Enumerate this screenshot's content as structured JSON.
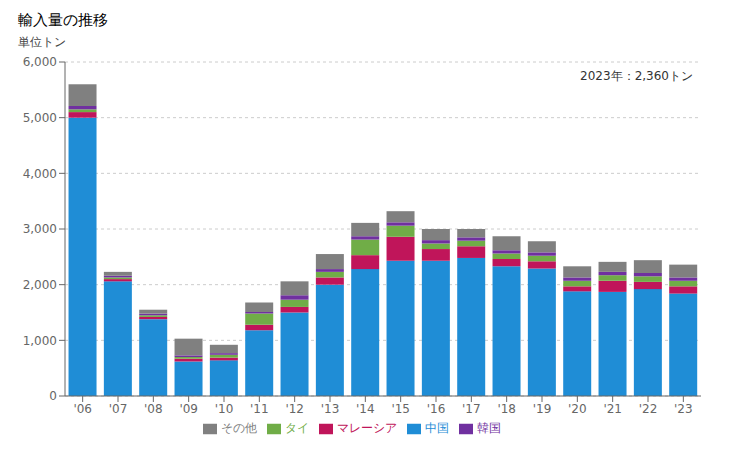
{
  "chart_data": {
    "type": "bar",
    "stacked": true,
    "title": "輸入量の推移",
    "ylabel": "単位トン",
    "annotation": "2023年：2,360トン",
    "categories": [
      "'06",
      "'07",
      "'08",
      "'09",
      "'10",
      "'11",
      "'12",
      "'13",
      "'14",
      "'15",
      "'16",
      "'17",
      "'18",
      "'19",
      "'20",
      "'21",
      "'22",
      "'23"
    ],
    "series": [
      {
        "name": "中国",
        "color": "#1f8dd6",
        "values": [
          5000,
          2060,
          1380,
          620,
          640,
          1180,
          1500,
          2000,
          2280,
          2430,
          2430,
          2480,
          2330,
          2290,
          1880,
          1870,
          1920,
          1840
        ]
      },
      {
        "name": "マレーシア",
        "color": "#c0155a",
        "values": [
          100,
          40,
          40,
          50,
          50,
          100,
          100,
          130,
          250,
          430,
          210,
          210,
          130,
          130,
          90,
          200,
          130,
          130
        ]
      },
      {
        "name": "タイ",
        "color": "#70ad47",
        "values": [
          50,
          30,
          30,
          30,
          50,
          200,
          130,
          100,
          280,
          200,
          100,
          100,
          100,
          100,
          100,
          100,
          100,
          100
        ]
      },
      {
        "name": "韓国",
        "color": "#7030a0",
        "values": [
          60,
          30,
          30,
          30,
          30,
          30,
          80,
          50,
          60,
          60,
          60,
          60,
          60,
          60,
          60,
          60,
          60,
          60
        ]
      },
      {
        "name": "その他",
        "color": "#808080",
        "values": [
          390,
          70,
          70,
          300,
          150,
          170,
          250,
          270,
          240,
          200,
          200,
          150,
          250,
          200,
          200,
          180,
          230,
          230
        ]
      }
    ],
    "ylim": [
      0,
      6000
    ],
    "yticks": [
      0,
      {
        "value": 1000,
        "label": "1,000"
      },
      {
        "value": 2000,
        "label": "2,000"
      },
      {
        "value": 3000,
        "label": "3,000"
      },
      {
        "value": 4000,
        "label": "4,000"
      },
      {
        "value": 5000,
        "label": "5,000"
      },
      {
        "value": 6000,
        "label": "6,000"
      }
    ],
    "grid": true,
    "legend": "bottom"
  }
}
